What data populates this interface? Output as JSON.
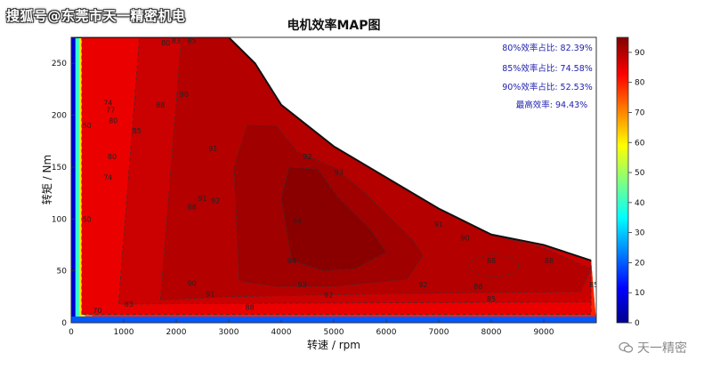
{
  "watermark": {
    "top_left": "搜狐号@东莞市天一精密机电",
    "bottom_right": "天一精密"
  },
  "stats": [
    {
      "label": "80%效率占比:",
      "value": "82.39%"
    },
    {
      "label": "85%效率占比:",
      "value": "74.58%"
    },
    {
      "label": "90%效率占比:",
      "value": "52.53%"
    },
    {
      "label": "最高效率:",
      "value": "94.43%"
    }
  ],
  "chart_data": {
    "type": "heatmap",
    "title": "电机效率MAP图",
    "xlabel": "转速 / rpm",
    "ylabel": "转矩 / Nm",
    "xlim": [
      0,
      10000
    ],
    "ylim": [
      0,
      275
    ],
    "xticks": [
      0,
      1000,
      2000,
      3000,
      4000,
      5000,
      6000,
      7000,
      8000,
      9000
    ],
    "yticks": [
      0,
      50,
      100,
      150,
      200,
      250
    ],
    "colorbar": {
      "range": [
        0,
        95
      ],
      "ticks": [
        0,
        10,
        20,
        30,
        40,
        50,
        60,
        70,
        80,
        90
      ]
    },
    "contour_levels": [
      50,
      70,
      74,
      77,
      80,
      83,
      85,
      88,
      90,
      91,
      92,
      93,
      94
    ],
    "max_torque_curve": [
      [
        0,
        275
      ],
      [
        3000,
        275
      ],
      [
        3500,
        250
      ],
      [
        4000,
        210
      ],
      [
        5000,
        170
      ],
      [
        6000,
        140
      ],
      [
        7000,
        110
      ],
      [
        8000,
        85
      ],
      [
        9000,
        75
      ],
      [
        9900,
        60
      ]
    ],
    "efficiency_regions": [
      {
        "level": 85,
        "points": [
          [
            200,
            8
          ],
          [
            200,
            275
          ],
          [
            3000,
            275
          ],
          [
            3500,
            250
          ],
          [
            4000,
            210
          ],
          [
            5000,
            170
          ],
          [
            6000,
            140
          ],
          [
            7000,
            110
          ],
          [
            8000,
            85
          ],
          [
            9000,
            75
          ],
          [
            9900,
            60
          ],
          [
            9900,
            8
          ]
        ]
      },
      {
        "level": 88,
        "points": [
          [
            900,
            18
          ],
          [
            1300,
            275
          ],
          [
            3000,
            275
          ],
          [
            3500,
            250
          ],
          [
            4000,
            210
          ],
          [
            5000,
            170
          ],
          [
            6000,
            140
          ],
          [
            7000,
            110
          ],
          [
            8000,
            85
          ],
          [
            9000,
            75
          ],
          [
            9900,
            60
          ],
          [
            9900,
            20
          ]
        ]
      },
      {
        "level": 90,
        "points": [
          [
            1700,
            22
          ],
          [
            2100,
            275
          ],
          [
            3000,
            275
          ],
          [
            3500,
            250
          ],
          [
            4000,
            210
          ],
          [
            5000,
            170
          ],
          [
            6000,
            140
          ],
          [
            7000,
            110
          ],
          [
            8000,
            85
          ],
          [
            9000,
            72
          ],
          [
            9900,
            52
          ],
          [
            9700,
            30
          ],
          [
            6000,
            28
          ],
          [
            3000,
            25
          ]
        ]
      },
      {
        "level": 92,
        "points": [
          [
            3200,
            40
          ],
          [
            3100,
            150
          ],
          [
            3350,
            190
          ],
          [
            3900,
            190
          ],
          [
            4300,
            165
          ],
          [
            5000,
            150
          ],
          [
            5600,
            125
          ],
          [
            6100,
            100
          ],
          [
            6500,
            80
          ],
          [
            6700,
            65
          ],
          [
            6400,
            42
          ],
          [
            5000,
            35
          ],
          [
            3900,
            35
          ]
        ]
      },
      {
        "level": 94,
        "points": [
          [
            4200,
            60
          ],
          [
            4000,
            120
          ],
          [
            4150,
            150
          ],
          [
            4700,
            148
          ],
          [
            5100,
            120
          ],
          [
            5700,
            90
          ],
          [
            6000,
            68
          ],
          [
            5400,
            52
          ],
          [
            4800,
            50
          ]
        ]
      }
    ],
    "contour_labels": [
      {
        "x": 1800,
        "y": 270,
        "text": "80"
      },
      {
        "x": 2000,
        "y": 272,
        "text": "83"
      },
      {
        "x": 2300,
        "y": 272,
        "text": "85"
      },
      {
        "x": 700,
        "y": 212,
        "text": "74"
      },
      {
        "x": 750,
        "y": 205,
        "text": "77"
      },
      {
        "x": 800,
        "y": 195,
        "text": "80"
      },
      {
        "x": 1250,
        "y": 185,
        "text": "85"
      },
      {
        "x": 1700,
        "y": 210,
        "text": "88"
      },
      {
        "x": 2150,
        "y": 220,
        "text": "90"
      },
      {
        "x": 2700,
        "y": 168,
        "text": "91"
      },
      {
        "x": 2300,
        "y": 112,
        "text": "88"
      },
      {
        "x": 2500,
        "y": 120,
        "text": "91"
      },
      {
        "x": 2750,
        "y": 118,
        "text": "92"
      },
      {
        "x": 4300,
        "y": 98,
        "text": "94"
      },
      {
        "x": 4200,
        "y": 60,
        "text": "94"
      },
      {
        "x": 5100,
        "y": 145,
        "text": "93"
      },
      {
        "x": 4500,
        "y": 160,
        "text": "92"
      },
      {
        "x": 2300,
        "y": 38,
        "text": "90"
      },
      {
        "x": 2650,
        "y": 28,
        "text": "91"
      },
      {
        "x": 4900,
        "y": 27,
        "text": "92"
      },
      {
        "x": 4400,
        "y": 37,
        "text": "93"
      },
      {
        "x": 6700,
        "y": 37,
        "text": "92"
      },
      {
        "x": 7000,
        "y": 95,
        "text": "91"
      },
      {
        "x": 7500,
        "y": 82,
        "text": "90"
      },
      {
        "x": 8000,
        "y": 60,
        "text": "88"
      },
      {
        "x": 7750,
        "y": 35,
        "text": "88"
      },
      {
        "x": 8000,
        "y": 23,
        "text": "85"
      },
      {
        "x": 9100,
        "y": 60,
        "text": "88"
      },
      {
        "x": 9950,
        "y": 37,
        "text": "85"
      },
      {
        "x": 3400,
        "y": 15,
        "text": "88"
      },
      {
        "x": 1100,
        "y": 18,
        "text": "83"
      },
      {
        "x": 500,
        "y": 12,
        "text": "70"
      },
      {
        "x": 300,
        "y": 190,
        "text": "50"
      },
      {
        "x": 300,
        "y": 100,
        "text": "50"
      },
      {
        "x": 700,
        "y": 140,
        "text": "74"
      },
      {
        "x": 780,
        "y": 160,
        "text": "80"
      }
    ]
  }
}
